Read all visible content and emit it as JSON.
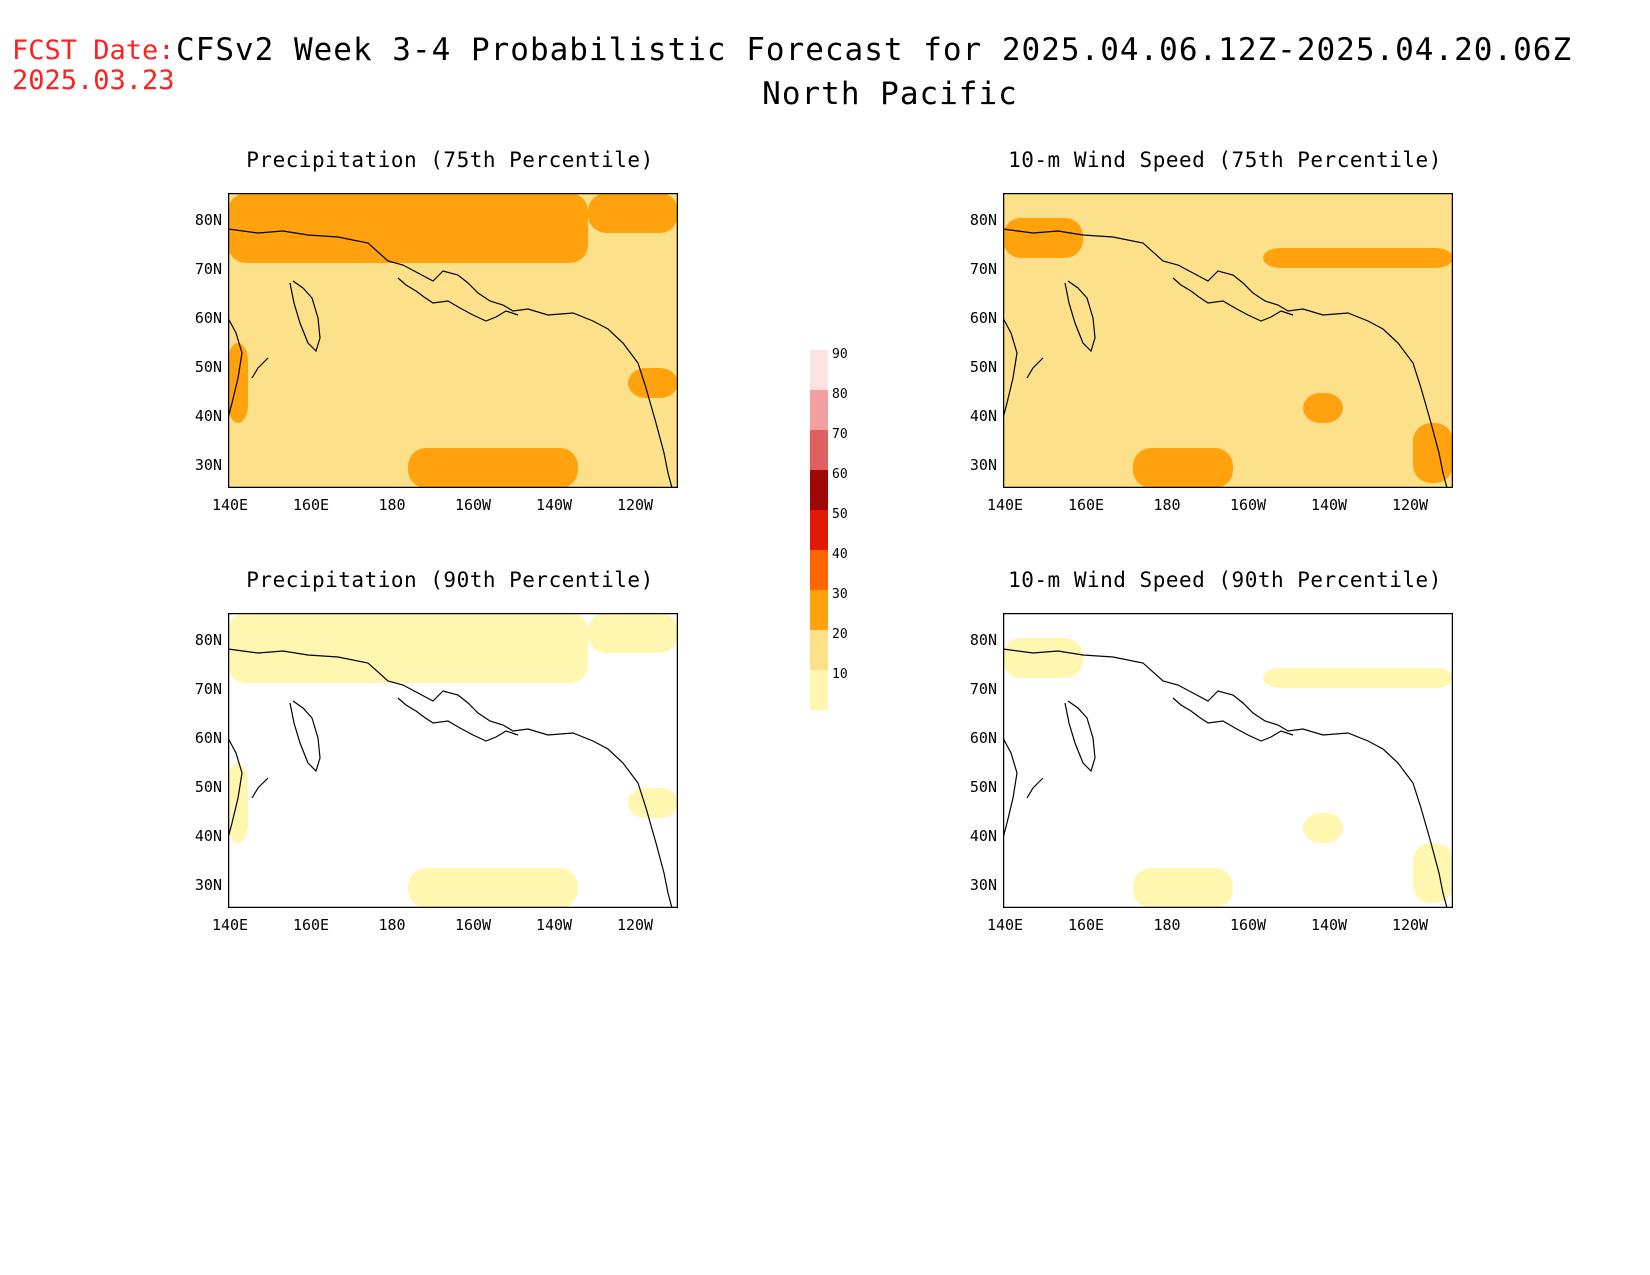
{
  "header": {
    "fcst_label": "FCST Date:",
    "fcst_date": "2025.03.23",
    "title_line1": "CFSv2 Week 3-4 Probabilistic Forecast for 2025.04.06.12Z-2025.04.20.06Z",
    "title_line2": "North Pacific"
  },
  "axes": {
    "lat_ticks": [
      "80N",
      "70N",
      "60N",
      "50N",
      "40N",
      "30N"
    ],
    "lon_ticks": [
      "140E",
      "160E",
      "180",
      "160W",
      "140W",
      "120W"
    ]
  },
  "panels": [
    {
      "title": "Precipitation (75th Percentile)",
      "base": "#fde08a",
      "blob_color": "#ffa20e"
    },
    {
      "title": "10-m Wind Speed (75th Percentile)",
      "base": "#fde08a",
      "blob_color": "#ffa20e"
    },
    {
      "title": "Precipitation (90th Percentile)",
      "base": "#ffffff",
      "blob_color": "#fff6b0"
    },
    {
      "title": "10-m Wind Speed (90th Percentile)",
      "base": "#ffffff",
      "blob_color": "#fff6b0"
    }
  ],
  "colorbar": {
    "levels": [
      "90",
      "80",
      "70",
      "60",
      "50",
      "40",
      "30",
      "20",
      "10"
    ],
    "colors": [
      "#fbe3e3",
      "#f4a0a0",
      "#e06060",
      "#a00808",
      "#e01a06",
      "#ff6600",
      "#ffa20e",
      "#fde08a",
      "#fff6b0"
    ]
  }
}
